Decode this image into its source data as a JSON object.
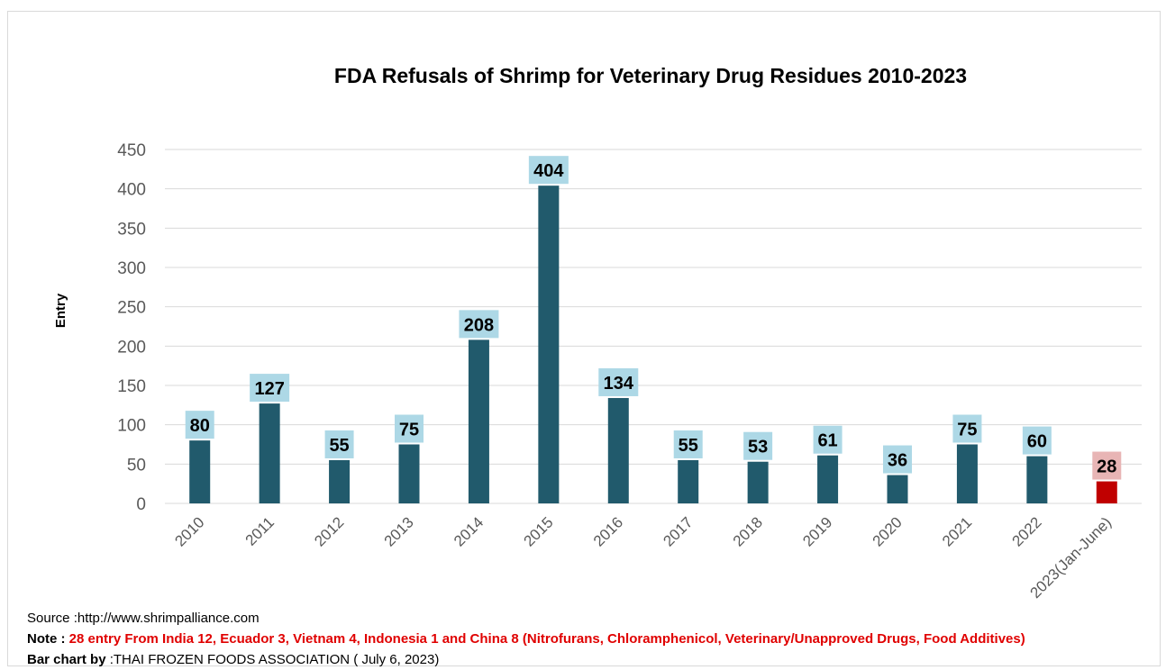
{
  "chart_data": {
    "type": "bar",
    "title": "FDA Refusals of  Shrimp for Veterinary Drug Residues 2010-2023",
    "ylabel": "Entry",
    "xlabel": "",
    "ylim": [
      0,
      450
    ],
    "yticks": [
      0,
      50,
      100,
      150,
      200,
      250,
      300,
      350,
      400,
      450
    ],
    "grid": true,
    "categories": [
      "2010",
      "2011",
      "2012",
      "2013",
      "2014",
      "2015",
      "2016",
      "2017",
      "2018",
      "2019",
      "2020",
      "2021",
      "2022",
      "2023(Jan-June)"
    ],
    "values": [
      80,
      127,
      55,
      75,
      208,
      404,
      134,
      55,
      53,
      61,
      36,
      75,
      60,
      28
    ],
    "colors": {
      "bar": "#215a6c",
      "highlight_bar": "#c00000",
      "label_bg": "#add8e6",
      "highlight_label_bg": "#e8b5b5",
      "grid": "#d9d9d9",
      "tick_text": "#595959"
    },
    "highlight_index": 13
  },
  "footer": {
    "source": "Source :http://www.shrimpalliance.com",
    "note_prefix": "Note : ",
    "note_text": "28 entry  From India 12, Ecuador 3, Vietnam 4, Indonesia 1 and China 8 (Nitrofurans, Chloramphenicol, Veterinary/Unapproved Drugs, Food Additives)",
    "credit_prefix": "Bar chart  by ",
    "credit_text": ":THAI FROZEN FOODS ASSOCIATION ( July 6, 2023)"
  }
}
